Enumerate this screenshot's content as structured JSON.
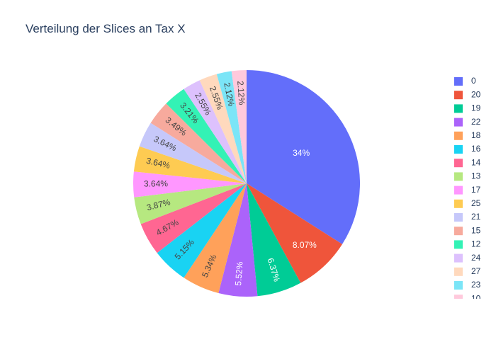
{
  "title": "Verteilung der Slices an Tax X",
  "chart_data": {
    "type": "pie",
    "title": "Verteilung der Slices an Tax X",
    "slices": [
      {
        "label": "0",
        "value": 34.0,
        "text": "34%",
        "color": "#636efa"
      },
      {
        "label": "20",
        "value": 8.07,
        "text": "8.07%",
        "color": "#EF553B"
      },
      {
        "label": "19",
        "value": 6.37,
        "text": "6.37%",
        "color": "#00cc96"
      },
      {
        "label": "22",
        "value": 5.52,
        "text": "5.52%",
        "color": "#ab63fa"
      },
      {
        "label": "18",
        "value": 5.34,
        "text": "5.34%",
        "color": "#FFA15A"
      },
      {
        "label": "16",
        "value": 5.15,
        "text": "5.15%",
        "color": "#19d3f3"
      },
      {
        "label": "14",
        "value": 4.67,
        "text": "4.67%",
        "color": "#FF6692"
      },
      {
        "label": "13",
        "value": 3.87,
        "text": "3.87%",
        "color": "#B6E880"
      },
      {
        "label": "17",
        "value": 3.64,
        "text": "3.64%",
        "color": "#FF97FF"
      },
      {
        "label": "25",
        "value": 3.64,
        "text": "3.64%",
        "color": "#FECB52"
      },
      {
        "label": "21",
        "value": 3.64,
        "text": "3.64%",
        "color": "#c6c8fa"
      },
      {
        "label": "15",
        "value": 3.49,
        "text": "3.49%",
        "color": "#f7aa9d"
      },
      {
        "label": "12",
        "value": 3.21,
        "text": "3.21%",
        "color": "#33f2b5"
      },
      {
        "label": "24",
        "value": 2.55,
        "text": "2.55%",
        "color": "#ddc1fd"
      },
      {
        "label": "27",
        "value": 2.55,
        "text": "2.55%",
        "color": "#ffd9bd"
      },
      {
        "label": "23",
        "value": 2.12,
        "text": "2.12%",
        "color": "#7be5f7"
      },
      {
        "label": "10",
        "value": 2.12,
        "text": "2.12%",
        "color": "#ffc9dc"
      }
    ],
    "legend_position": "right",
    "sort": "descending",
    "direction": "clockwise",
    "start": "top"
  }
}
